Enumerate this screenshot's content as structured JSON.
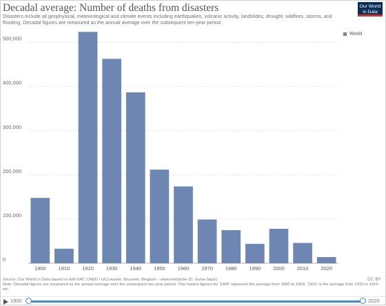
{
  "header": {
    "title": "Decadal average: Number of deaths from disasters",
    "subtitle": "Disasters include all geophysical, meteorological and climate events including earthquakes, volcanic activity, landslides, drought, wildfires, storms, and flooding. Decadal figures are measured as the annual average over the subsequent ten-year period.",
    "logo_line1": "Our World",
    "logo_line2": "in Data"
  },
  "colors": {
    "series": "#6d87b2",
    "logo_bg": "#0b2d57",
    "accent": "#3f8ad0"
  },
  "chart_data": {
    "type": "bar",
    "categories": [
      "1900",
      "1910",
      "1920",
      "1930",
      "1940",
      "1950",
      "1960",
      "1970",
      "1980",
      "1990",
      "2000",
      "2010",
      "2020"
    ],
    "series": [
      {
        "name": "World",
        "values": [
          148000,
          33000,
          524000,
          463000,
          387000,
          212000,
          174000,
          99000,
          75000,
          44000,
          78000,
          46000,
          14000
        ]
      }
    ],
    "yticks": [
      0,
      100000,
      200000,
      300000,
      400000,
      500000
    ],
    "ytick_labels": [
      "0",
      "100,000",
      "200,000",
      "300,000",
      "400,000",
      "500,000"
    ],
    "ylim": [
      0,
      540000
    ],
    "grid": "horizontal-dashed",
    "legend": "top-right"
  },
  "footer": {
    "source": "Source: Our World in Data based on EM-DAT, CRED / UCLouvain, Brussels, Belgium – www.emdat.be (D. Guha-Sapir)",
    "note": "Note: Decadal figures are measured as the annual average over the subsequent ten-year period. This means figures for '1900' represent the average from 1900 to 1909, '1910' is the average from 1910 to 1919 etc.",
    "license": "CC BY"
  },
  "timeline": {
    "start": "1900",
    "end": "2020"
  }
}
